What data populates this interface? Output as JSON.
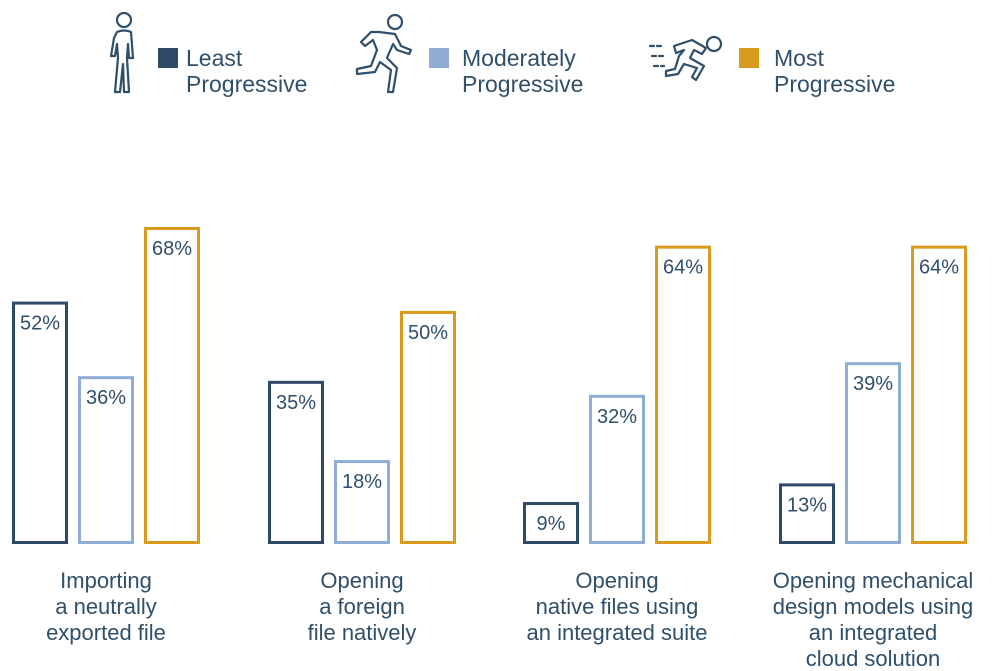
{
  "legend": [
    {
      "icon": "walking-person-icon",
      "line1": "Least",
      "line2": "Progressive",
      "color": "#2e4a66"
    },
    {
      "icon": "running-person-icon",
      "line1": "Moderately",
      "line2": "Progressive",
      "color": "#8fadd4"
    },
    {
      "icon": "sprinting-person-icon",
      "line1": "Most",
      "line2": "Progressive",
      "color": "#d99b1e"
    }
  ],
  "chart_data": {
    "type": "bar",
    "categories": [
      [
        "Importing",
        "a neutrally",
        "exported file"
      ],
      [
        "Opening",
        "a foreign",
        "file natively"
      ],
      [
        "Opening",
        "native files using",
        "an integrated suite"
      ],
      [
        "Opening mechanical",
        "design models using",
        "an integrated",
        "cloud solution"
      ]
    ],
    "series": [
      {
        "name": "Least Progressive",
        "color": "#2e4a66",
        "values": [
          52,
          35,
          9,
          13
        ],
        "labels": [
          "52%",
          "35%",
          "9%",
          "13%"
        ]
      },
      {
        "name": "Moderately Progressive",
        "color": "#8fadd4",
        "values": [
          36,
          18,
          32,
          39
        ],
        "labels": [
          "36%",
          "18%",
          "32%",
          "39%"
        ]
      },
      {
        "name": "Most Progressive",
        "color": "#d99b1e",
        "values": [
          68,
          50,
          64,
          64
        ],
        "labels": [
          "68%",
          "50%",
          "64%",
          "64%"
        ]
      }
    ],
    "ylim": [
      0,
      68
    ],
    "grid": false,
    "legend_position": "top"
  }
}
